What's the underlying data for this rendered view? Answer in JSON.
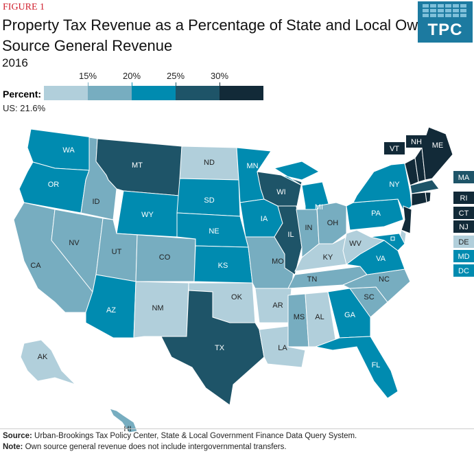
{
  "figure_label": "FIGURE 1",
  "title": "Property Tax Revenue as a Percentage of State and Local Own-Source General Revenue",
  "year": "2016",
  "logo_text": "TPC",
  "legend": {
    "label": "Percent:",
    "us_value": "US: 21.6%",
    "ticks": [
      "15%",
      "20%",
      "25%",
      "30%"
    ],
    "bins": [
      {
        "range": "<15%",
        "color": "#b1cfdb"
      },
      {
        "range": "15-20%",
        "color": "#77adc0"
      },
      {
        "range": "20-25%",
        "color": "#008bb0"
      },
      {
        "range": "25-30%",
        "color": "#1e5468"
      },
      {
        "range": ">30%",
        "color": "#122a38"
      }
    ]
  },
  "states": [
    {
      "code": "WA",
      "bin": 2
    },
    {
      "code": "OR",
      "bin": 2
    },
    {
      "code": "CA",
      "bin": 1
    },
    {
      "code": "NV",
      "bin": 1
    },
    {
      "code": "ID",
      "bin": 1
    },
    {
      "code": "MT",
      "bin": 3
    },
    {
      "code": "WY",
      "bin": 2
    },
    {
      "code": "UT",
      "bin": 1
    },
    {
      "code": "AZ",
      "bin": 2
    },
    {
      "code": "CO",
      "bin": 1
    },
    {
      "code": "NM",
      "bin": 0
    },
    {
      "code": "ND",
      "bin": 0
    },
    {
      "code": "SD",
      "bin": 2
    },
    {
      "code": "NE",
      "bin": 2
    },
    {
      "code": "KS",
      "bin": 2
    },
    {
      "code": "OK",
      "bin": 0
    },
    {
      "code": "TX",
      "bin": 3
    },
    {
      "code": "MN",
      "bin": 2
    },
    {
      "code": "IA",
      "bin": 2
    },
    {
      "code": "MO",
      "bin": 1
    },
    {
      "code": "AR",
      "bin": 0
    },
    {
      "code": "LA",
      "bin": 0
    },
    {
      "code": "WI",
      "bin": 3
    },
    {
      "code": "IL",
      "bin": 3
    },
    {
      "code": "MI",
      "bin": 2
    },
    {
      "code": "IN",
      "bin": 1
    },
    {
      "code": "OH",
      "bin": 1
    },
    {
      "code": "KY",
      "bin": 0
    },
    {
      "code": "TN",
      "bin": 1
    },
    {
      "code": "MS",
      "bin": 1
    },
    {
      "code": "AL",
      "bin": 0
    },
    {
      "code": "GA",
      "bin": 2
    },
    {
      "code": "FL",
      "bin": 2
    },
    {
      "code": "SC",
      "bin": 1
    },
    {
      "code": "NC",
      "bin": 1
    },
    {
      "code": "VA",
      "bin": 2
    },
    {
      "code": "WV",
      "bin": 0
    },
    {
      "code": "PA",
      "bin": 2
    },
    {
      "code": "NY",
      "bin": 2
    },
    {
      "code": "VT",
      "bin": 4
    },
    {
      "code": "NH",
      "bin": 4
    },
    {
      "code": "ME",
      "bin": 4
    },
    {
      "code": "MA",
      "bin": 3
    },
    {
      "code": "RI",
      "bin": 4
    },
    {
      "code": "CT",
      "bin": 4
    },
    {
      "code": "NJ",
      "bin": 4
    },
    {
      "code": "DE",
      "bin": 0
    },
    {
      "code": "MD",
      "bin": 2
    },
    {
      "code": "DC",
      "bin": 2
    },
    {
      "code": "AK",
      "bin": 0
    },
    {
      "code": "HI",
      "bin": 1
    }
  ],
  "footer": {
    "source_label": "Source:",
    "source_text": " Urban-Brookings Tax Policy Center, State & Local Government Finance Data Query System.",
    "note_label": "Note:",
    "note_text": " Own source general revenue does not include intergovernmental transfers."
  }
}
